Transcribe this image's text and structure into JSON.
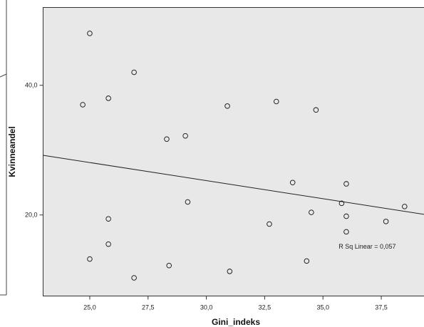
{
  "chart_data": {
    "type": "scatter",
    "xlabel": "Gini_indeks",
    "ylabel": "Kvinneandel",
    "xlim": [
      23.0,
      39.5
    ],
    "ylim": [
      7.5,
      52.0
    ],
    "x_ticks": [
      25.0,
      27.5,
      30.0,
      32.5,
      35.0,
      37.5
    ],
    "x_tick_labels": [
      "25,0",
      "27,5",
      "30,0",
      "32,5",
      "35,0",
      "37,5"
    ],
    "y_ticks": [
      20.0,
      40.0
    ],
    "y_tick_labels": [
      "20,0",
      "40,0"
    ],
    "grid": false,
    "background": "#e8e8e8",
    "marker": "open-circle",
    "points": [
      {
        "x": 25.0,
        "y": 48.0
      },
      {
        "x": 26.9,
        "y": 42.0
      },
      {
        "x": 24.7,
        "y": 37.0
      },
      {
        "x": 25.8,
        "y": 38.0
      },
      {
        "x": 30.9,
        "y": 36.8
      },
      {
        "x": 33.0,
        "y": 37.5
      },
      {
        "x": 34.7,
        "y": 36.2
      },
      {
        "x": 29.1,
        "y": 32.2
      },
      {
        "x": 28.3,
        "y": 31.7
      },
      {
        "x": 33.7,
        "y": 25.0
      },
      {
        "x": 36.0,
        "y": 24.8
      },
      {
        "x": 35.8,
        "y": 21.8
      },
      {
        "x": 29.2,
        "y": 22.0
      },
      {
        "x": 38.5,
        "y": 21.3
      },
      {
        "x": 34.5,
        "y": 20.4
      },
      {
        "x": 36.0,
        "y": 19.8
      },
      {
        "x": 25.8,
        "y": 19.4
      },
      {
        "x": 37.7,
        "y": 19.0
      },
      {
        "x": 32.7,
        "y": 18.6
      },
      {
        "x": 36.0,
        "y": 17.4
      },
      {
        "x": 25.8,
        "y": 15.5
      },
      {
        "x": 25.0,
        "y": 13.2
      },
      {
        "x": 34.3,
        "y": 12.9
      },
      {
        "x": 28.4,
        "y": 12.2
      },
      {
        "x": 31.0,
        "y": 11.3
      },
      {
        "x": 26.9,
        "y": 10.3
      }
    ],
    "fit_line": {
      "type": "linear",
      "x": [
        23.0,
        39.5
      ],
      "y": [
        29.2,
        20.0
      ]
    },
    "annotations": [
      {
        "text": "R Sq Linear = 0,057",
        "x": 36.9,
        "y": 14.8
      }
    ]
  }
}
